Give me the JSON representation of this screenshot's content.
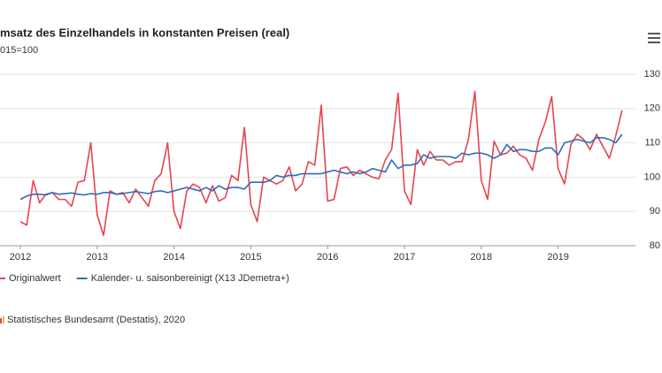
{
  "chart_data": {
    "type": "line",
    "title": "msatz des Einzelhandels in konstanten Preisen (real)",
    "subtitle": "015=100",
    "source": "Statistisches Bundesamt (Destatis), 2020",
    "x": [
      2012,
      2012.083,
      2012.167,
      2012.25,
      2012.333,
      2012.417,
      2012.5,
      2012.583,
      2012.667,
      2012.75,
      2012.833,
      2012.917,
      2013,
      2013.083,
      2013.167,
      2013.25,
      2013.333,
      2013.417,
      2013.5,
      2013.583,
      2013.667,
      2013.75,
      2013.833,
      2013.917,
      2014,
      2014.083,
      2014.167,
      2014.25,
      2014.333,
      2014.417,
      2014.5,
      2014.583,
      2014.667,
      2014.75,
      2014.833,
      2014.917,
      2015,
      2015.083,
      2015.167,
      2015.25,
      2015.333,
      2015.417,
      2015.5,
      2015.583,
      2015.667,
      2015.75,
      2015.833,
      2015.917,
      2016,
      2016.083,
      2016.167,
      2016.25,
      2016.333,
      2016.417,
      2016.5,
      2016.583,
      2016.667,
      2016.75,
      2016.833,
      2016.917,
      2017,
      2017.083,
      2017.167,
      2017.25,
      2017.333,
      2017.417,
      2017.5,
      2017.583,
      2017.667,
      2017.75,
      2017.833,
      2017.917,
      2018,
      2018.083,
      2018.167,
      2018.25,
      2018.333,
      2018.417,
      2018.5,
      2018.583,
      2018.667,
      2018.75,
      2018.833,
      2018.917,
      2019,
      2019.083,
      2019.167,
      2019.25,
      2019.333,
      2019.417,
      2019.5,
      2019.583,
      2019.667,
      2019.75,
      2019.833
    ],
    "series": [
      {
        "name": "Originalwert",
        "color": "#e8434f",
        "values": [
          87,
          86,
          99,
          92.5,
          95,
          95.5,
          93.5,
          93.5,
          91.5,
          98.5,
          99,
          110,
          89,
          83,
          96,
          95,
          95.5,
          92.5,
          96.5,
          94,
          91.5,
          99,
          101,
          110,
          90,
          85,
          96,
          98,
          97,
          92.5,
          97.5,
          93,
          94,
          100.5,
          99,
          114.5,
          92,
          87,
          100,
          99,
          98,
          99,
          103,
          96,
          98,
          104.5,
          103.5,
          121,
          93,
          93.5,
          102.5,
          103,
          100.5,
          102,
          101,
          100,
          99.5,
          105,
          108,
          124.5,
          96,
          92,
          108,
          103.5,
          107.5,
          105,
          105,
          103.5,
          104.5,
          104.5,
          111,
          125,
          99,
          93.5,
          110.5,
          106.5,
          107,
          109,
          106.5,
          105.5,
          102,
          111,
          116,
          123.5,
          102.5,
          98,
          109.5,
          112.5,
          111,
          108,
          112.5,
          109,
          105.5,
          112,
          119.5
        ]
      },
      {
        "name": "Kalender- u. saisonbereinigt (X13 JDemetra+)",
        "color": "#2f6db5",
        "values": [
          93.5,
          94.5,
          95,
          95,
          94.8,
          95.5,
          95,
          95.2,
          95.4,
          95,
          94.8,
          95.2,
          95,
          95.5,
          95.5,
          95,
          95.2,
          95.5,
          95.8,
          95.5,
          95.2,
          95.8,
          96,
          95.5,
          96,
          96.5,
          97,
          96.5,
          96,
          97,
          96,
          97.5,
          96.5,
          97,
          97,
          96.5,
          98.5,
          98.5,
          98.5,
          99,
          100.5,
          100,
          100.5,
          100.5,
          101,
          101,
          101,
          101,
          101.5,
          102,
          101.5,
          101,
          101.5,
          101,
          101.5,
          102.5,
          102,
          101.5,
          105,
          102.5,
          103.5,
          103.5,
          104,
          106.5,
          105.5,
          106,
          106,
          106,
          105.5,
          107,
          106.5,
          107,
          107,
          106.5,
          105.5,
          106.5,
          109.5,
          107.5,
          108,
          108,
          107.5,
          107.5,
          108.5,
          108.5,
          106.5,
          110,
          110.5,
          111,
          110.5,
          110,
          111.5,
          111.5,
          111,
          110,
          112.5
        ]
      }
    ],
    "xlim": [
      2011.735,
      2020.007
    ],
    "xticks": [
      2012,
      2013,
      2014,
      2015,
      2016,
      2017,
      2018,
      2019
    ],
    "ylim": [
      80,
      130
    ],
    "yticks": [
      80,
      90,
      100,
      110,
      120,
      130
    ],
    "grid": true
  }
}
